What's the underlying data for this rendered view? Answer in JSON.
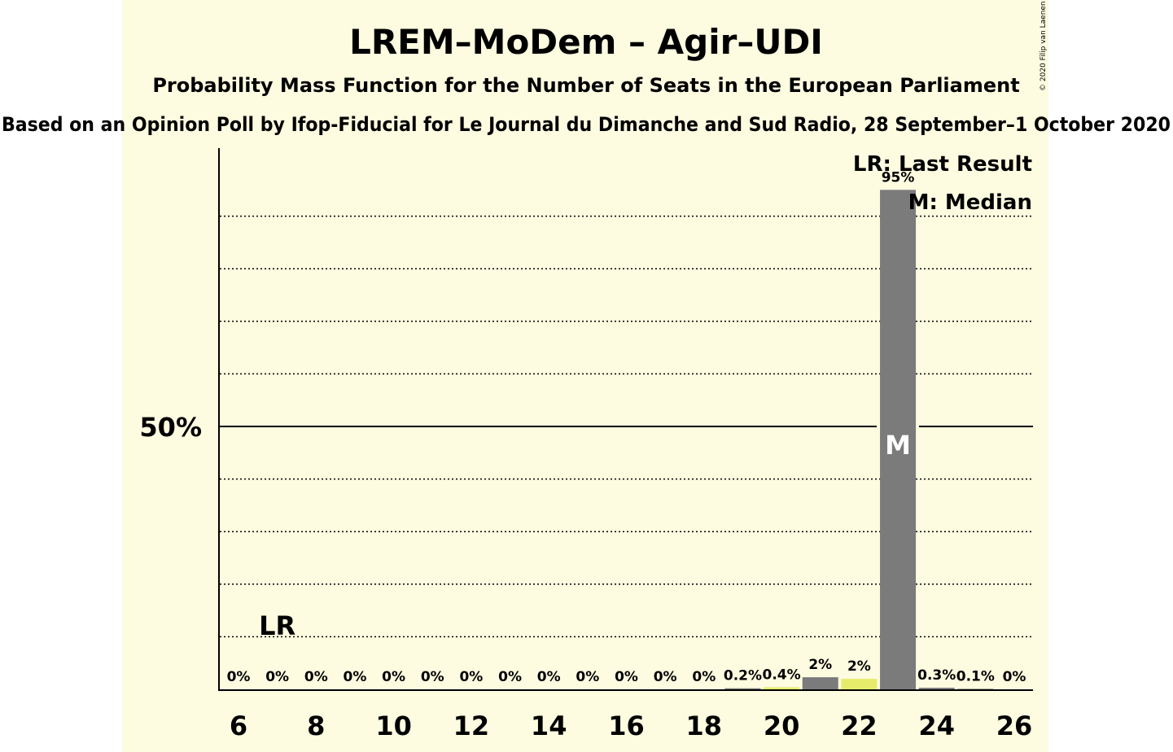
{
  "title": "LREM–MoDem – Agir–UDI",
  "subtitle": "Probability Mass Function for the Number of Seats in the European Parliament",
  "source_note": "Based on an Opinion Poll by Ifop-Fiducial for Le Journal du Dimanche and Sud Radio, 28 September–1 October 2020",
  "copyright": "© 2020 Filip van Laenen",
  "legend": {
    "last_result": "LR: Last Result",
    "median": "M: Median"
  },
  "colors": {
    "background_panel": "#fdfbe0",
    "bar_main": "#7b7b7b",
    "bar_highlight": "#e6ec6a",
    "gridline": "#000000"
  },
  "chart_data": {
    "type": "bar",
    "title": "LREM–MoDem – Agir–UDI",
    "xlabel": "",
    "ylabel": "",
    "ylim": [
      0,
      100
    ],
    "ytick_labels": [
      {
        "value": 50,
        "label": "50%"
      }
    ],
    "grid_values": [
      10,
      20,
      30,
      40,
      60,
      70,
      80,
      90
    ],
    "grid": true,
    "x_tick_labels": [
      "6",
      "8",
      "10",
      "12",
      "14",
      "16",
      "18",
      "20",
      "22",
      "24",
      "26"
    ],
    "x": [
      6,
      7,
      8,
      9,
      10,
      11,
      12,
      13,
      14,
      15,
      16,
      17,
      18,
      19,
      20,
      21,
      22,
      23,
      24,
      25,
      26
    ],
    "values": [
      0,
      0,
      0,
      0,
      0,
      0,
      0,
      0,
      0,
      0,
      0,
      0,
      0,
      0.2,
      0.4,
      2.3,
      2.0,
      95,
      0.3,
      0.1,
      0
    ],
    "labels": [
      "0%",
      "0%",
      "0%",
      "0%",
      "0%",
      "0%",
      "0%",
      "0%",
      "0%",
      "0%",
      "0%",
      "0%",
      "0%",
      "0.2%",
      "0.4%",
      "2%",
      "2%",
      "95%",
      "0.3%",
      "0.1%",
      "0%"
    ],
    "highlight_colors": {
      "22": "#e6ec6a",
      "20": "#e6ec6a"
    },
    "last_result": {
      "x": 7,
      "label": "LR"
    },
    "median": {
      "x": 23,
      "label": "M"
    },
    "legend_placement": "top-right"
  }
}
